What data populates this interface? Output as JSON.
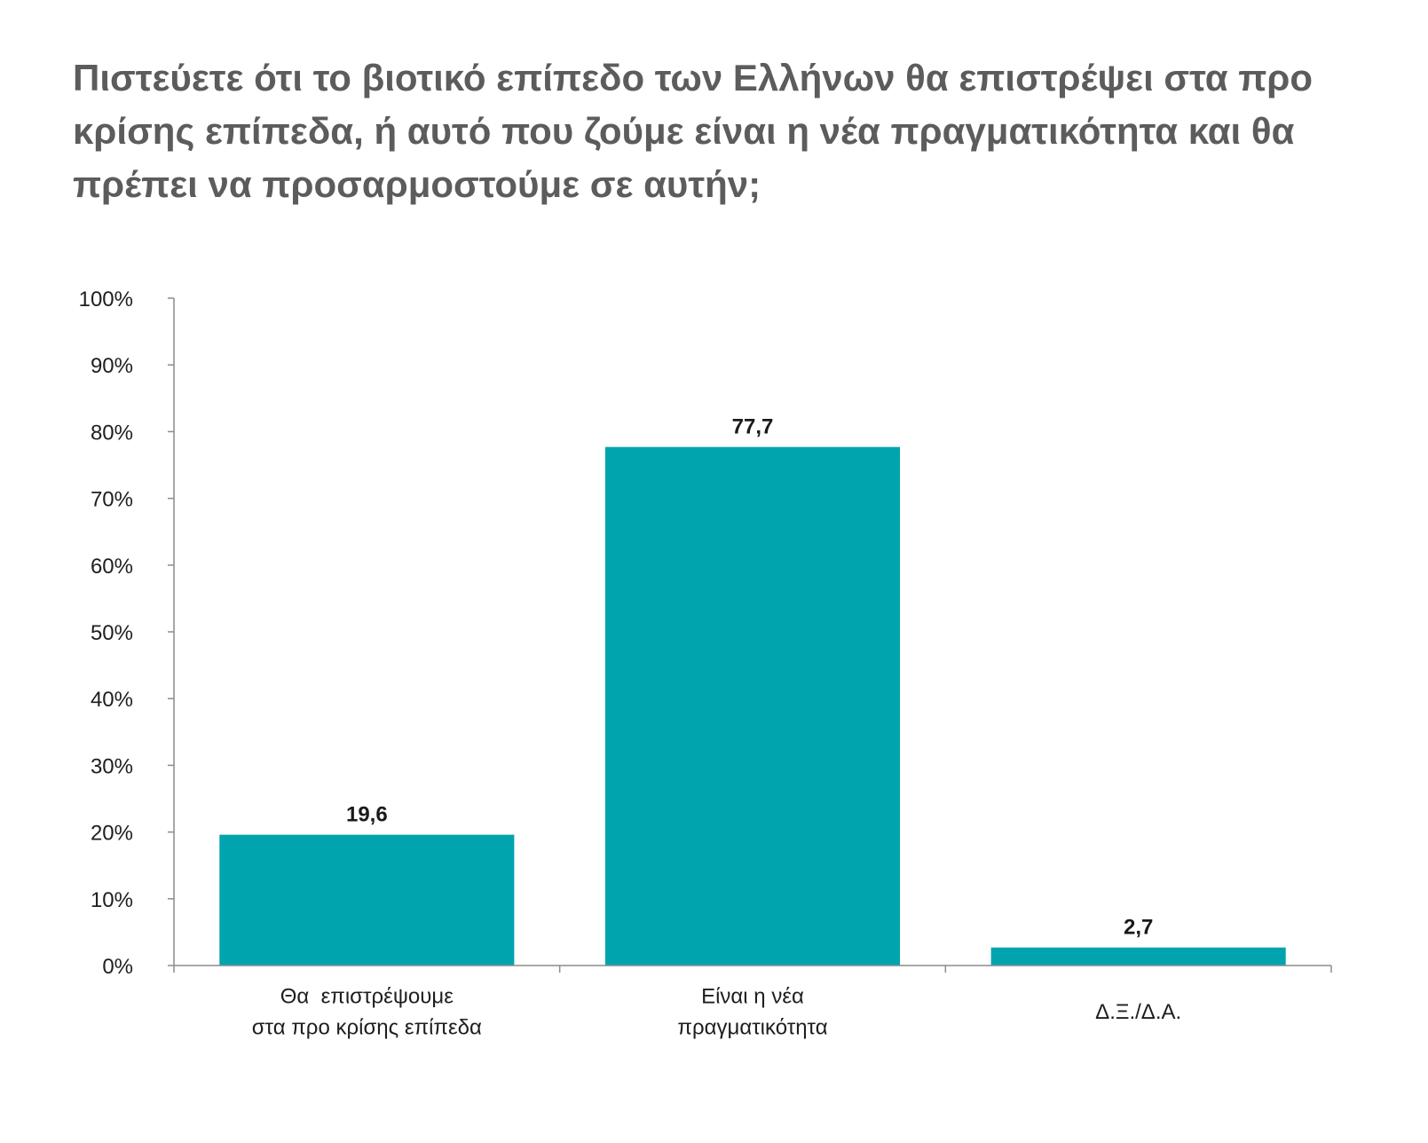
{
  "chart_data": {
    "type": "bar",
    "title": "Πιστεύετε ότι το βιοτικό επίπεδο των Ελλήνων θα επιστρέψει στα προ\nκρίσης επίπεδα, ή αυτό που ζούμε είναι η νέα πραγματικότητα και θα\nπρέπει να προσαρμοστούμε σε αυτήν;",
    "xlabel": "",
    "ylabel": "",
    "categories": [
      "Θα  επιστρέψουμε\nστα προ κρίσης επίπεδα",
      "Είναι η νέα\nπραγματικότητα",
      "Δ.Ξ./Δ.Α."
    ],
    "values": [
      19.6,
      77.7,
      2.7
    ],
    "value_labels": [
      "19,6",
      "77,7",
      "2,7"
    ],
    "ylim": [
      0,
      100
    ],
    "yticks": [
      0,
      10,
      20,
      30,
      40,
      50,
      60,
      70,
      80,
      90,
      100
    ],
    "ytick_labels": [
      "0%",
      "10%",
      "20%",
      "30%",
      "40%",
      "50%",
      "60%",
      "70%",
      "80%",
      "90%",
      "100%"
    ],
    "grid": false,
    "legend": "none",
    "colors": {
      "bar": "#00a4ae",
      "axis": "#8c8c8c",
      "title": "#5c5c5c",
      "text": "#1e1e1e"
    }
  }
}
